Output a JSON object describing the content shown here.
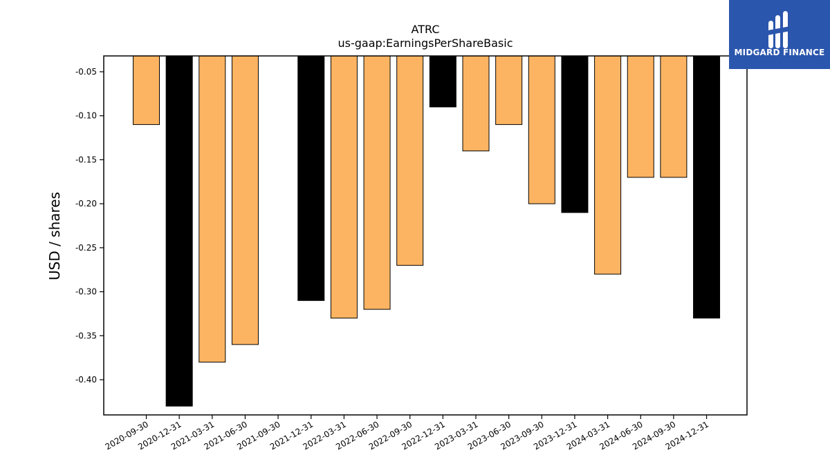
{
  "logo": {
    "text": "MIDGARD FINANCE",
    "background": "#2b56ad"
  },
  "chart_data": {
    "type": "bar",
    "title": "ATRC",
    "subtitle": "us-gaap:EarningsPerShareBasic",
    "xlabel": "",
    "ylabel": "USD / shares",
    "ylim": [
      -0.44,
      -0.032
    ],
    "yticks": [
      "-0.05",
      "-0.10",
      "-0.15",
      "-0.20",
      "-0.25",
      "-0.30",
      "-0.35",
      "-0.40"
    ],
    "grid": false,
    "categories": [
      "2020-09-30",
      "2020-12-31",
      "2021-03-31",
      "2021-06-30",
      "2021-09-30",
      "2021-12-31",
      "2022-03-31",
      "2022-06-30",
      "2022-09-30",
      "2022-12-31",
      "2023-03-31",
      "2023-06-30",
      "2023-09-30",
      "2023-12-31",
      "2024-03-31",
      "2024-06-30",
      "2024-09-30",
      "2024-12-31"
    ],
    "values": [
      -0.11,
      -0.43,
      -0.38,
      -0.36,
      null,
      -0.31,
      -0.33,
      -0.32,
      -0.27,
      -0.09,
      -0.14,
      -0.11,
      -0.2,
      -0.21,
      -0.28,
      -0.17,
      -0.17,
      -0.33
    ],
    "colors": {
      "quarter": "#fdb462",
      "annual": "#000000"
    },
    "bar_colors": [
      "quarter",
      "annual",
      "quarter",
      "quarter",
      "quarter",
      "annual",
      "quarter",
      "quarter",
      "quarter",
      "annual",
      "quarter",
      "quarter",
      "quarter",
      "annual",
      "quarter",
      "quarter",
      "quarter",
      "annual"
    ]
  }
}
